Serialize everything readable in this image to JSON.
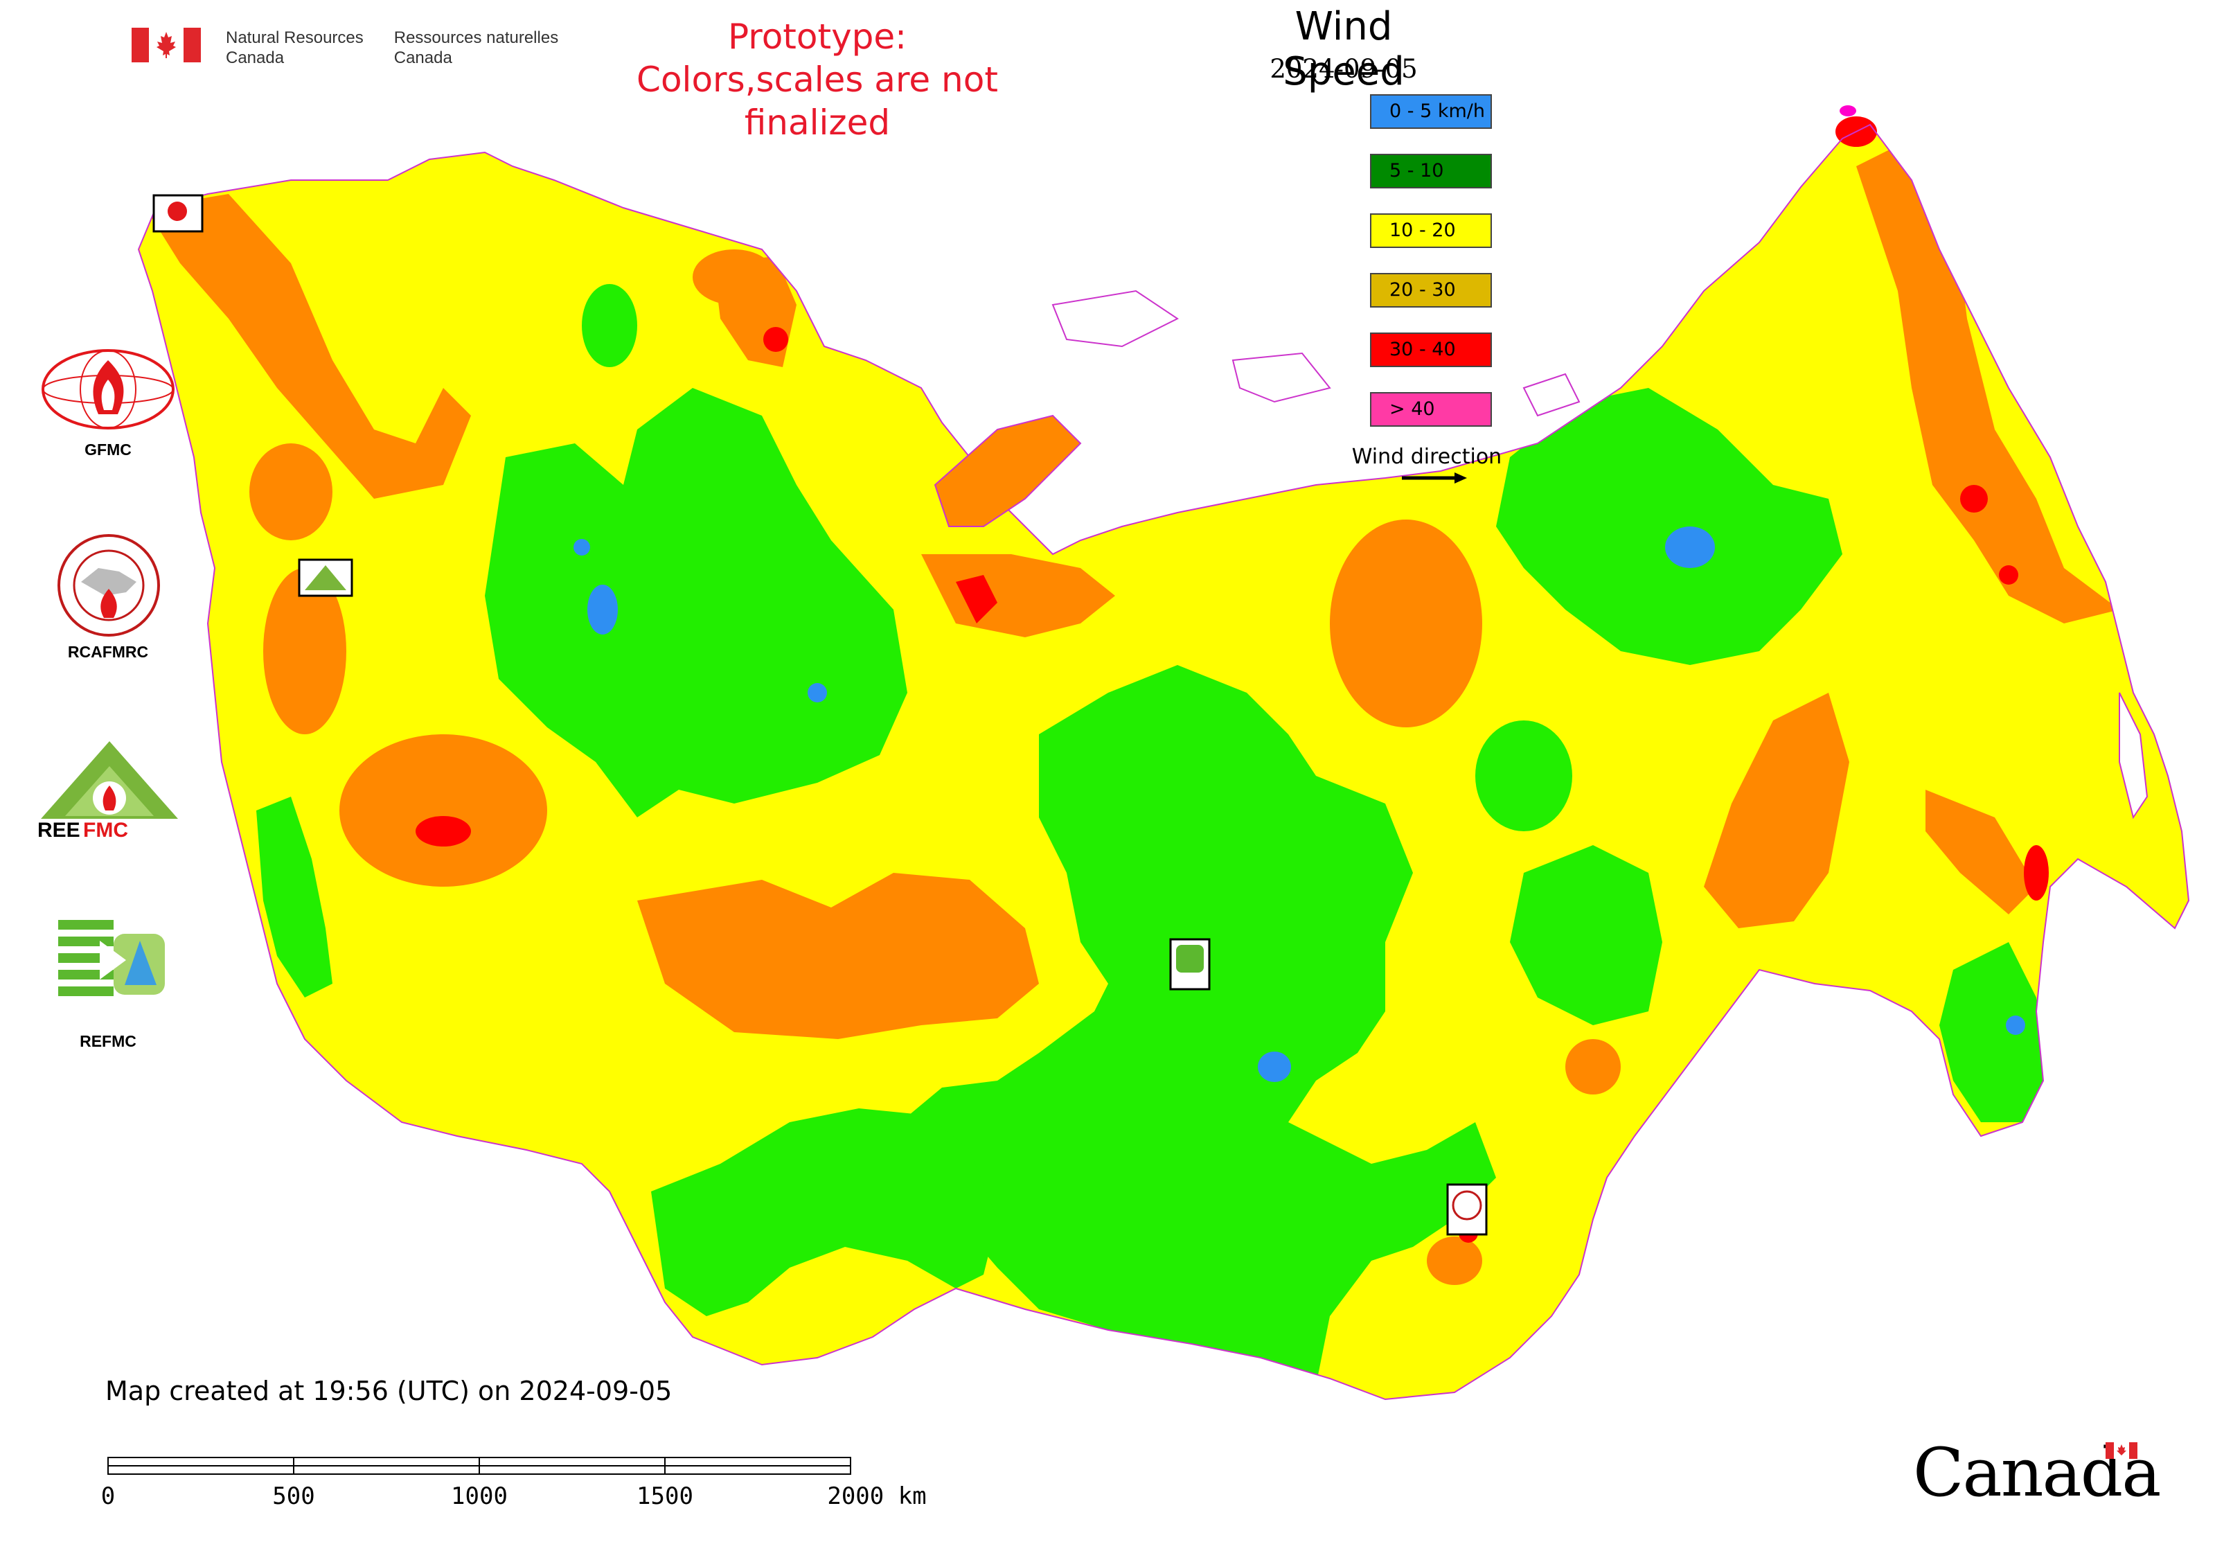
{
  "header": {
    "department_en": [
      "Natural Resources",
      "Canada"
    ],
    "department_fr": [
      "Ressources naturelles",
      "Canada"
    ],
    "prototype_line1": "Prototype:",
    "prototype_line2": "Colors,scales are not finalized"
  },
  "map": {
    "title": "Wind Speed",
    "date": "2024-09-05",
    "legend": [
      {
        "label": "0 - 5 km/h",
        "color": "#2f8ff2"
      },
      {
        "label": "5 - 10",
        "color": "#008a00"
      },
      {
        "label": "10 - 20",
        "color": "#ffff00"
      },
      {
        "label": "20 - 30",
        "color": "#ddb800"
      },
      {
        "label": "30 - 40",
        "color": "#ff0000"
      },
      {
        "label": "> 40",
        "color": "#ff3aa5"
      }
    ],
    "wind_direction_label": "Wind direction",
    "zone_colors": {
      "calm": "#2f8ff2",
      "light": "#22ee00",
      "moderate": "#ffff00",
      "fresh": "#ff8800",
      "strong": "#ff0000",
      "gale": "#ff00cc"
    },
    "created_text": "Map created at 19:56 (UTC) on 2024-09-05",
    "scale_bar": {
      "labels": [
        "0",
        "500",
        "1000",
        "1500",
        "2000 km"
      ]
    }
  },
  "organizations": [
    {
      "label": "GFMC",
      "icon": "gfmc-fire-globe-logo"
    },
    {
      "label": "RCAFMRC",
      "icon": "rcafmrc-circle-seal-logo"
    },
    {
      "label": "REEFMC",
      "icon": "reefmc-triangle-logo"
    },
    {
      "label": "REFMC",
      "icon": "refmc-green-stripes-logo"
    }
  ],
  "footer": {
    "wordmark": "Canada"
  }
}
